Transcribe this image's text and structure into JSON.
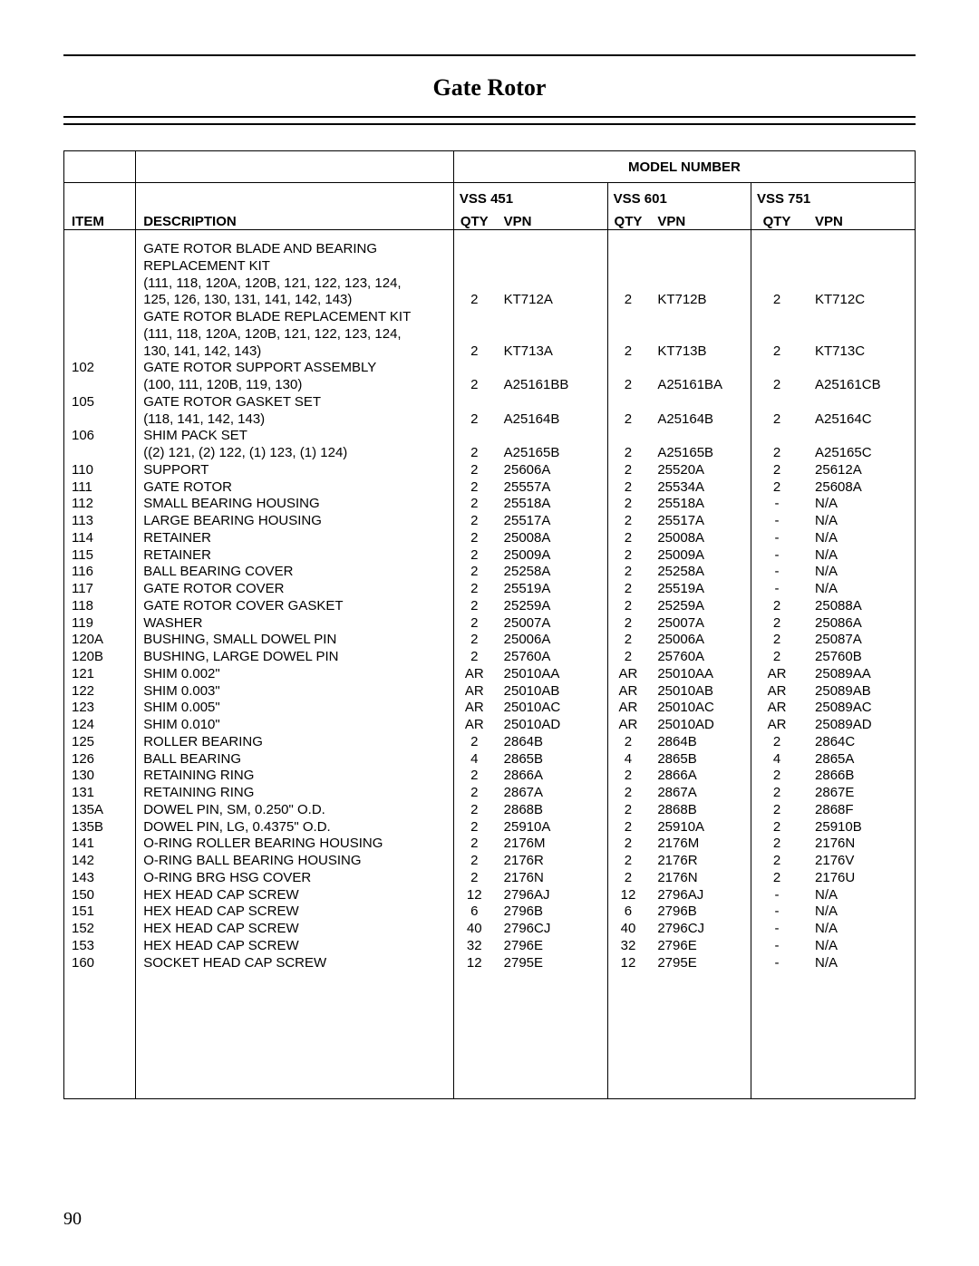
{
  "title": "Gate Rotor",
  "page_number": "90",
  "model_number_header": "MODEL NUMBER",
  "models": {
    "m1": {
      "name": "VSS 451",
      "qty_label": "QTY",
      "vpn_label": "VPN"
    },
    "m2": {
      "name": "VSS 601",
      "qty_label": "QTY",
      "vpn_label": "VPN"
    },
    "m3": {
      "name": "VSS 751",
      "qty_label": "QTY",
      "vpn_label": "VPN"
    }
  },
  "column_headers": {
    "item": "ITEM",
    "description": "DESCRIPTION"
  },
  "rows": [
    {
      "item": "",
      "desc": "GATE ROTOR BLADE AND BEARING",
      "q1": "",
      "v1": "",
      "q2": "",
      "v2": "",
      "q3": "",
      "v3": ""
    },
    {
      "item": "",
      "desc": "REPLACEMENT KIT",
      "q1": "",
      "v1": "",
      "q2": "",
      "v2": "",
      "q3": "",
      "v3": ""
    },
    {
      "item": "",
      "desc": "(111, 118, 120A, 120B, 121, 122, 123, 124,",
      "q1": "",
      "v1": "",
      "q2": "",
      "v2": "",
      "q3": "",
      "v3": ""
    },
    {
      "item": "",
      "desc": "125, 126, 130, 131, 141, 142, 143)",
      "q1": "2",
      "v1": "KT712A",
      "q2": "2",
      "v2": "KT712B",
      "q3": "2",
      "v3": "KT712C"
    },
    {
      "item": "",
      "desc": "GATE ROTOR BLADE REPLACEMENT KIT",
      "q1": "",
      "v1": "",
      "q2": "",
      "v2": "",
      "q3": "",
      "v3": ""
    },
    {
      "item": "",
      "desc": "(111, 118, 120A, 120B, 121, 122, 123, 124,",
      "q1": "",
      "v1": "",
      "q2": "",
      "v2": "",
      "q3": "",
      "v3": ""
    },
    {
      "item": "",
      "desc": "130, 141, 142, 143)",
      "q1": "2",
      "v1": "KT713A",
      "q2": "2",
      "v2": "KT713B",
      "q3": "2",
      "v3": "KT713C"
    },
    {
      "item": "102",
      "desc": "GATE ROTOR SUPPORT ASSEMBLY",
      "q1": "",
      "v1": "",
      "q2": "",
      "v2": "",
      "q3": "",
      "v3": ""
    },
    {
      "item": "",
      "desc": "(100, 111, 120B, 119, 130)",
      "q1": "2",
      "v1": "A25161BB",
      "q2": "2",
      "v2": "A25161BA",
      "q3": "2",
      "v3": "A25161CB"
    },
    {
      "item": "105",
      "desc": "GATE ROTOR GASKET SET",
      "q1": "",
      "v1": "",
      "q2": "",
      "v2": "",
      "q3": "",
      "v3": ""
    },
    {
      "item": "",
      "desc": "(118, 141, 142, 143)",
      "q1": "2",
      "v1": "A25164B",
      "q2": "2",
      "v2": "A25164B",
      "q3": "2",
      "v3": "A25164C"
    },
    {
      "item": "106",
      "desc": "SHIM PACK SET",
      "q1": "",
      "v1": "",
      "q2": "",
      "v2": "",
      "q3": "",
      "v3": ""
    },
    {
      "item": "",
      "desc": "((2) 121, (2) 122, (1) 123, (1) 124)",
      "q1": "2",
      "v1": "A25165B",
      "q2": "2",
      "v2": "A25165B",
      "q3": "2",
      "v3": "A25165C"
    },
    {
      "item": "110",
      "desc": "SUPPORT",
      "q1": "2",
      "v1": "25606A",
      "q2": "2",
      "v2": "25520A",
      "q3": "2",
      "v3": "25612A"
    },
    {
      "item": "111",
      "desc": "GATE ROTOR",
      "q1": "2",
      "v1": "25557A",
      "q2": "2",
      "v2": "25534A",
      "q3": "2",
      "v3": "25608A"
    },
    {
      "item": "112",
      "desc": "SMALL BEARING HOUSING",
      "q1": "2",
      "v1": "25518A",
      "q2": "2",
      "v2": "25518A",
      "q3": "-",
      "v3": "N/A"
    },
    {
      "item": "113",
      "desc": "LARGE BEARING HOUSING",
      "q1": "2",
      "v1": "25517A",
      "q2": "2",
      "v2": "25517A",
      "q3": "-",
      "v3": "N/A"
    },
    {
      "item": "114",
      "desc": "RETAINER",
      "q1": "2",
      "v1": "25008A",
      "q2": "2",
      "v2": "25008A",
      "q3": "-",
      "v3": "N/A"
    },
    {
      "item": "115",
      "desc": "RETAINER",
      "q1": "2",
      "v1": "25009A",
      "q2": "2",
      "v2": "25009A",
      "q3": "-",
      "v3": "N/A"
    },
    {
      "item": "116",
      "desc": "BALL BEARING COVER",
      "q1": "2",
      "v1": "25258A",
      "q2": "2",
      "v2": "25258A",
      "q3": "-",
      "v3": "N/A"
    },
    {
      "item": "117",
      "desc": "GATE ROTOR COVER",
      "q1": "2",
      "v1": "25519A",
      "q2": "2",
      "v2": "25519A",
      "q3": "-",
      "v3": "N/A"
    },
    {
      "item": "118",
      "desc": "GATE ROTOR COVER GASKET",
      "q1": "2",
      "v1": "25259A",
      "q2": "2",
      "v2": "25259A",
      "q3": "2",
      "v3": "25088A"
    },
    {
      "item": "119",
      "desc": "WASHER",
      "q1": "2",
      "v1": "25007A",
      "q2": "2",
      "v2": "25007A",
      "q3": "2",
      "v3": "25086A"
    },
    {
      "item": "120A",
      "desc": "BUSHING, SMALL DOWEL PIN",
      "q1": "2",
      "v1": "25006A",
      "q2": "2",
      "v2": "25006A",
      "q3": "2",
      "v3": "25087A"
    },
    {
      "item": "120B",
      "desc": "BUSHING, LARGE DOWEL PIN",
      "q1": "2",
      "v1": "25760A",
      "q2": "2",
      "v2": "25760A",
      "q3": "2",
      "v3": "25760B"
    },
    {
      "item": "121",
      "desc": "SHIM 0.002\"",
      "q1": "AR",
      "v1": "25010AA",
      "q2": "AR",
      "v2": "25010AA",
      "q3": "AR",
      "v3": "25089AA"
    },
    {
      "item": "122",
      "desc": "SHIM 0.003\"",
      "q1": "AR",
      "v1": "25010AB",
      "q2": "AR",
      "v2": "25010AB",
      "q3": "AR",
      "v3": "25089AB"
    },
    {
      "item": "123",
      "desc": "SHIM 0.005\"",
      "q1": "AR",
      "v1": "25010AC",
      "q2": "AR",
      "v2": "25010AC",
      "q3": "AR",
      "v3": "25089AC"
    },
    {
      "item": "124",
      "desc": "SHIM 0.010\"",
      "q1": "AR",
      "v1": "25010AD",
      "q2": "AR",
      "v2": "25010AD",
      "q3": "AR",
      "v3": "25089AD"
    },
    {
      "item": "125",
      "desc": "ROLLER BEARING",
      "q1": "2",
      "v1": "2864B",
      "q2": "2",
      "v2": "2864B",
      "q3": "2",
      "v3": "2864C"
    },
    {
      "item": "126",
      "desc": "BALL BEARING",
      "q1": "4",
      "v1": "2865B",
      "q2": "4",
      "v2": "2865B",
      "q3": "4",
      "v3": "2865A"
    },
    {
      "item": "130",
      "desc": "RETAINING RING",
      "q1": "2",
      "v1": "2866A",
      "q2": "2",
      "v2": "2866A",
      "q3": "2",
      "v3": "2866B"
    },
    {
      "item": "131",
      "desc": "RETAINING RING",
      "q1": "2",
      "v1": "2867A",
      "q2": "2",
      "v2": "2867A",
      "q3": "2",
      "v3": "2867E"
    },
    {
      "item": "135A",
      "desc": "DOWEL PIN, SM, 0.250\" O.D.",
      "q1": "2",
      "v1": "2868B",
      "q2": "2",
      "v2": "2868B",
      "q3": "2",
      "v3": "2868F"
    },
    {
      "item": "135B",
      "desc": "DOWEL PIN, LG, 0.4375\" O.D.",
      "q1": "2",
      "v1": "25910A",
      "q2": "2",
      "v2": "25910A",
      "q3": "2",
      "v3": "25910B"
    },
    {
      "item": "141",
      "desc": "O-RING ROLLER BEARING HOUSING",
      "q1": "2",
      "v1": "2176M",
      "q2": "2",
      "v2": "2176M",
      "q3": "2",
      "v3": "2176N"
    },
    {
      "item": "142",
      "desc": "O-RING BALL BEARING HOUSING",
      "q1": "2",
      "v1": "2176R",
      "q2": "2",
      "v2": "2176R",
      "q3": "2",
      "v3": "2176V"
    },
    {
      "item": "143",
      "desc": "O-RING BRG HSG COVER",
      "q1": "2",
      "v1": "2176N",
      "q2": "2",
      "v2": "2176N",
      "q3": "2",
      "v3": "2176U"
    },
    {
      "item": "150",
      "desc": "HEX HEAD CAP SCREW",
      "q1": "12",
      "v1": "2796AJ",
      "q2": "12",
      "v2": "2796AJ",
      "q3": "-",
      "v3": "N/A"
    },
    {
      "item": "151",
      "desc": "HEX HEAD CAP SCREW",
      "q1": "6",
      "v1": "2796B",
      "q2": "6",
      "v2": "2796B",
      "q3": "-",
      "v3": "N/A"
    },
    {
      "item": "152",
      "desc": "HEX HEAD CAP SCREW",
      "q1": "40",
      "v1": "2796CJ",
      "q2": "40",
      "v2": "2796CJ",
      "q3": "-",
      "v3": "N/A"
    },
    {
      "item": "153",
      "desc": "HEX HEAD CAP SCREW",
      "q1": "32",
      "v1": "2796E",
      "q2": "32",
      "v2": "2796E",
      "q3": "-",
      "v3": "N/A"
    },
    {
      "item": "160",
      "desc": "SOCKET HEAD CAP SCREW",
      "q1": "12",
      "v1": "2795E",
      "q2": "12",
      "v2": "2795E",
      "q3": "-",
      "v3": "N/A"
    }
  ]
}
